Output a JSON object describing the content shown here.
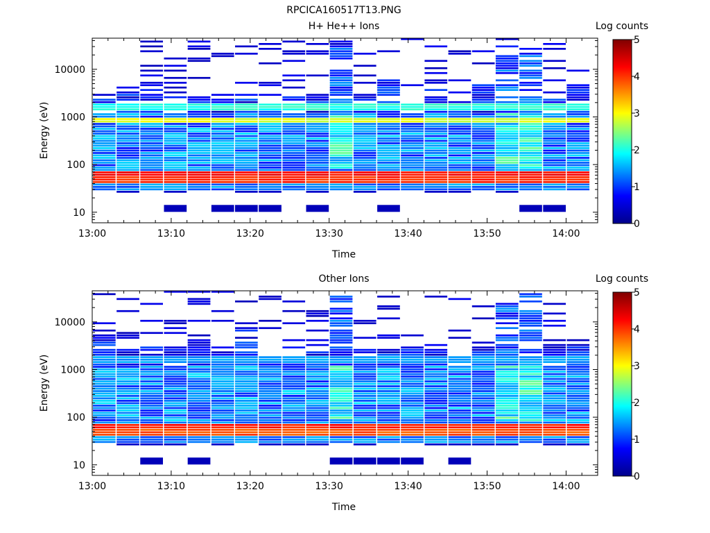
{
  "figure": {
    "title": "RPCICA160517T13.PNG"
  },
  "colors": {
    "colormap": [
      "#00008b",
      "#0000ff",
      "#00ffff",
      "#ffff00",
      "#ff0000",
      "#800000"
    ],
    "background": "#ffffff"
  },
  "chart_data": [
    {
      "type": "heatmap",
      "title": "H+ He++ Ions",
      "xlabel": "Time",
      "ylabel": "Energy (eV)",
      "colorbar_label": "Log counts",
      "colorbar_ticks": [
        "0",
        "1",
        "2",
        "3",
        "4",
        "5"
      ],
      "x_ticks": [
        "13:00",
        "13:10",
        "13:20",
        "13:30",
        "13:40",
        "13:50",
        "14:00"
      ],
      "y_ticks": [
        "10",
        "100",
        "1000",
        "10000"
      ],
      "y_scale": "log",
      "ylim": [
        6,
        45000
      ],
      "clim": [
        0,
        5
      ],
      "time_range": [
        "13:00",
        "14:02"
      ],
      "time_bins": [
        "13:00",
        "13:03",
        "13:06",
        "13:09",
        "13:12",
        "13:15",
        "13:18",
        "13:21",
        "13:24",
        "13:27",
        "13:30",
        "13:33",
        "13:36",
        "13:39",
        "13:42",
        "13:45",
        "13:48",
        "13:51",
        "13:54",
        "13:57",
        "14:00"
      ],
      "energy_bands_eV": [
        {
          "center": 45,
          "level": 4.2
        },
        {
          "center": 60,
          "level": 4.4
        },
        {
          "center": 780,
          "level": 3.0
        },
        {
          "center": 1550,
          "level": 2.2
        }
      ],
      "hot_columns": [
        "13:30",
        "13:51",
        "13:54"
      ],
      "high_energy_extent_eV": 40000
    },
    {
      "type": "heatmap",
      "title": "Other Ions",
      "xlabel": "Time",
      "ylabel": "Energy (eV)",
      "colorbar_label": "Log counts",
      "colorbar_ticks": [
        "0",
        "1",
        "2",
        "3",
        "4",
        "5"
      ],
      "x_ticks": [
        "13:00",
        "13:10",
        "13:20",
        "13:30",
        "13:40",
        "13:50",
        "14:00"
      ],
      "y_ticks": [
        "10",
        "100",
        "1000",
        "10000"
      ],
      "y_scale": "log",
      "ylim": [
        6,
        45000
      ],
      "clim": [
        0,
        5
      ],
      "time_range": [
        "13:00",
        "14:02"
      ],
      "time_bins": [
        "13:00",
        "13:03",
        "13:06",
        "13:09",
        "13:12",
        "13:15",
        "13:18",
        "13:21",
        "13:24",
        "13:27",
        "13:30",
        "13:33",
        "13:36",
        "13:39",
        "13:42",
        "13:45",
        "13:48",
        "13:51",
        "13:54",
        "13:57",
        "14:00"
      ],
      "energy_bands_eV": [
        {
          "center": 45,
          "level": 4.0
        },
        {
          "center": 60,
          "level": 4.3
        },
        {
          "center": 1550,
          "level": 1.6
        }
      ],
      "hot_columns": [
        "13:30",
        "13:51",
        "13:54"
      ],
      "high_energy_extent_eV": 40000
    }
  ]
}
